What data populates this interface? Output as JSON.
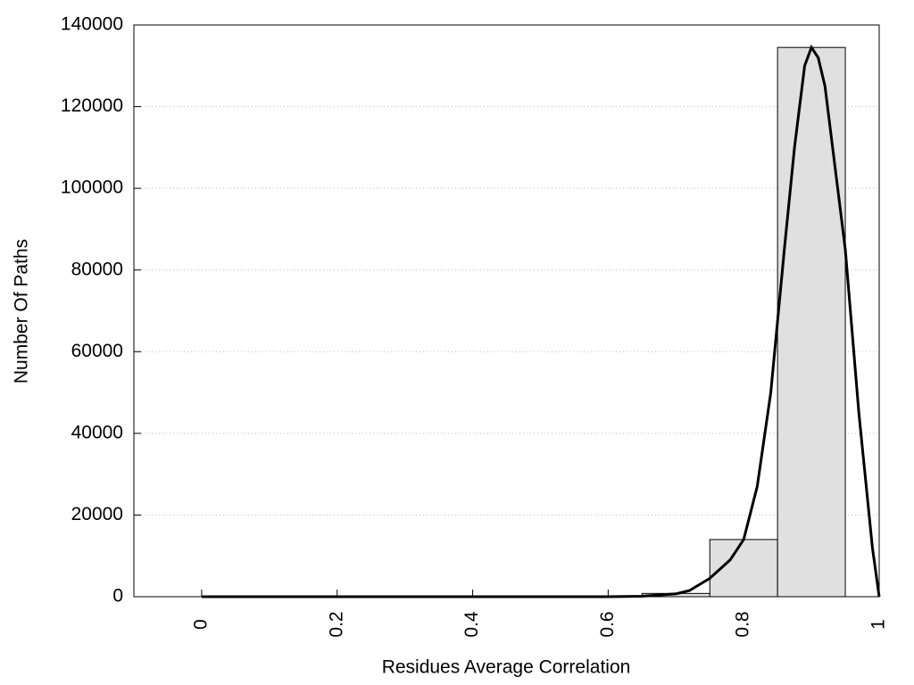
{
  "chart_data": {
    "type": "histogram",
    "xlabel": "Residues Average Correlation",
    "ylabel": "Number Of Paths",
    "bins": [
      -0.05,
      0.05,
      0.15,
      0.25,
      0.35,
      0.45,
      0.55,
      0.65,
      0.75,
      0.85,
      0.95
    ],
    "values": [
      0,
      0,
      0,
      0,
      0,
      0,
      0,
      800,
      14000,
      134500
    ],
    "color": "#e0e0e0",
    "curve": {
      "x": [
        0,
        0.1,
        0.2,
        0.3,
        0.4,
        0.5,
        0.6,
        0.65,
        0.7,
        0.72,
        0.75,
        0.78,
        0.8,
        0.82,
        0.84,
        0.86,
        0.875,
        0.89,
        0.9,
        0.91,
        0.92,
        0.935,
        0.95,
        0.97,
        0.99,
        1.0
      ],
      "values": [
        0,
        0,
        0,
        0,
        0,
        0,
        0,
        100,
        700,
        1500,
        4500,
        9000,
        14000,
        27000,
        50000,
        85000,
        110000,
        130000,
        134500,
        132000,
        125000,
        105000,
        85000,
        45000,
        12000,
        0
      ],
      "color": "#000000"
    },
    "xlim": [
      -0.1,
      1
    ],
    "ylim": [
      0,
      140000
    ],
    "xticks": [
      0,
      0.2,
      0.4,
      0.6,
      0.8,
      1
    ],
    "yticks": [
      0,
      20000,
      40000,
      60000,
      80000,
      100000,
      120000,
      140000
    ],
    "grid": true
  }
}
